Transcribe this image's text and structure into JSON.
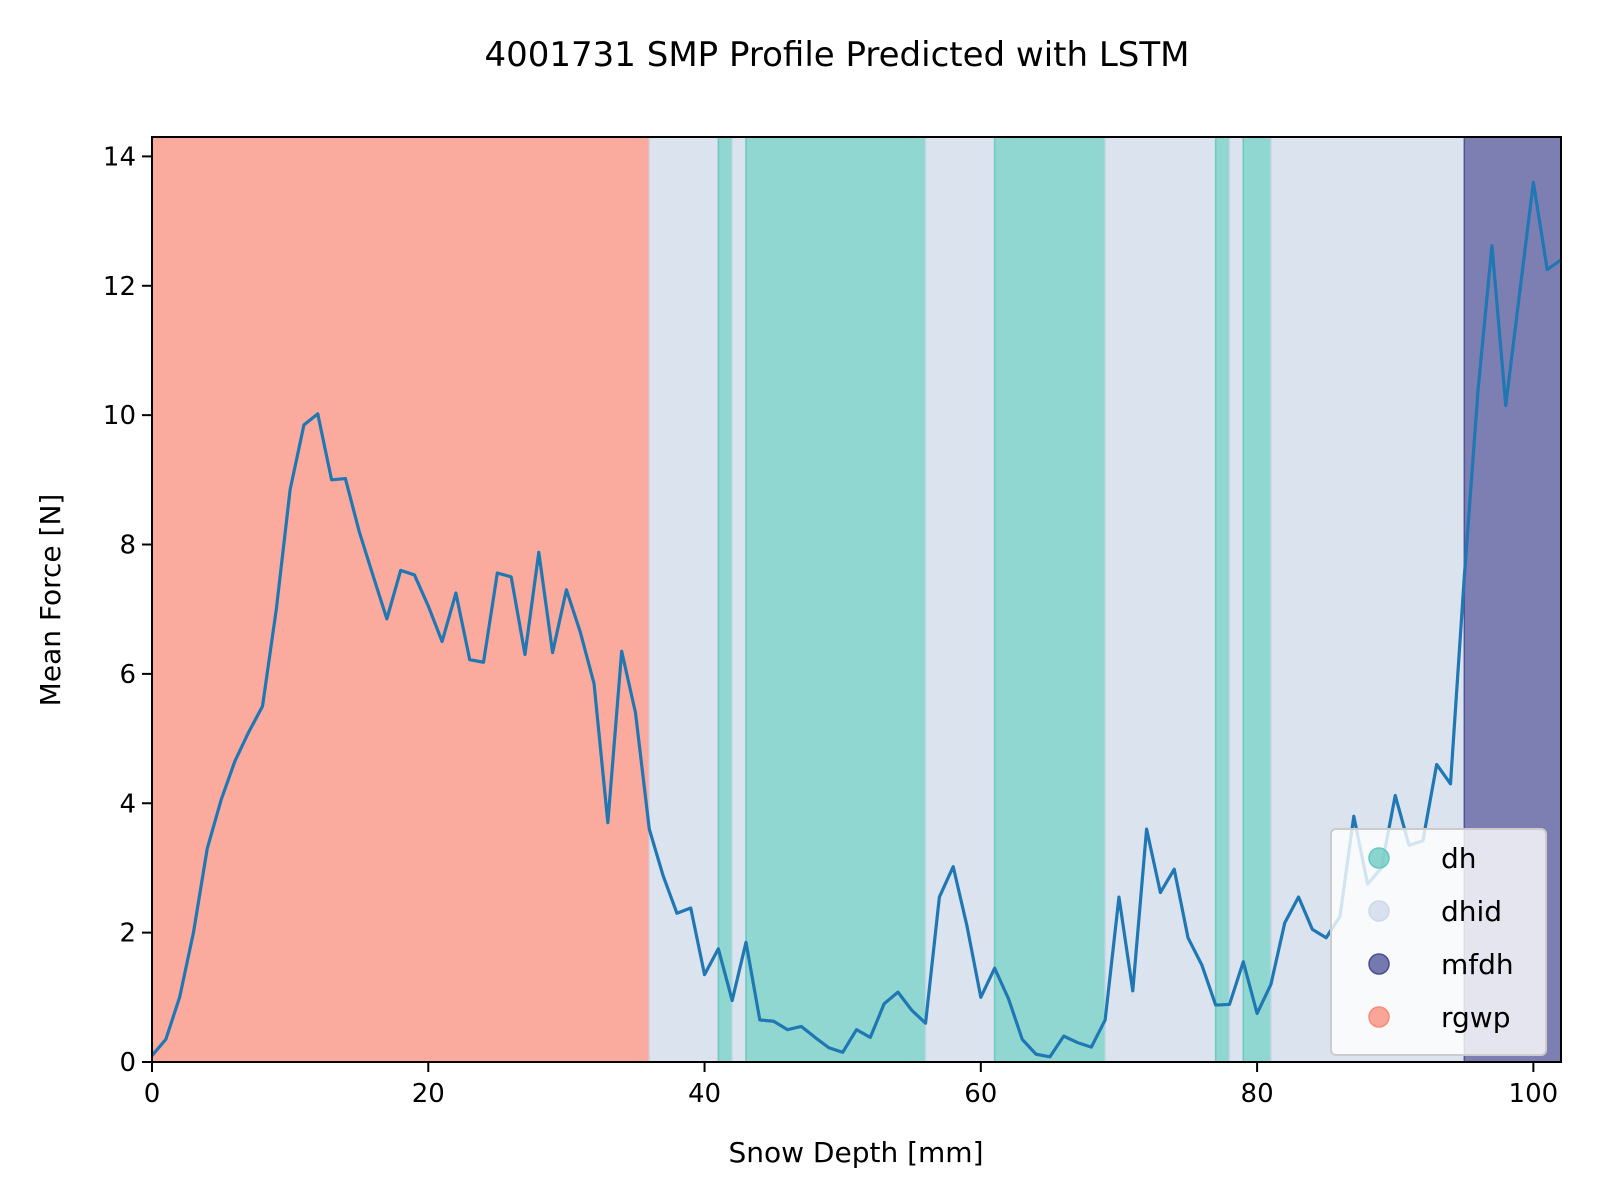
{
  "chart_data": {
    "type": "line",
    "title": "4001731 SMP Profile Predicted with LSTM",
    "xlabel": "Snow Depth [mm]",
    "ylabel": "Mean Force [N]",
    "xlim": [
      0,
      102
    ],
    "ylim": [
      0,
      14.3
    ],
    "xticks": [
      0,
      20,
      40,
      60,
      80,
      100
    ],
    "yticks": [
      0,
      2,
      4,
      6,
      8,
      10,
      12,
      14
    ],
    "grid": false,
    "legend_position": "bottom-right",
    "line_color": "#1f77b4",
    "classes": [
      {
        "name": "dh",
        "color": "#66c8bf"
      },
      {
        "name": "dhid",
        "color": "#cdd8e8"
      },
      {
        "name": "mfdh",
        "color": "#4b4e94"
      },
      {
        "name": "rgwp",
        "color": "#fa8a78"
      }
    ],
    "bands": [
      {
        "class": "rgwp",
        "start": 0,
        "end": 36
      },
      {
        "class": "dhid",
        "start": 36,
        "end": 41
      },
      {
        "class": "dh",
        "start": 41,
        "end": 42
      },
      {
        "class": "dhid",
        "start": 42,
        "end": 43
      },
      {
        "class": "dh",
        "start": 43,
        "end": 56
      },
      {
        "class": "dhid",
        "start": 56,
        "end": 61
      },
      {
        "class": "dh",
        "start": 61,
        "end": 69
      },
      {
        "class": "dhid",
        "start": 69,
        "end": 77
      },
      {
        "class": "dh",
        "start": 77,
        "end": 78
      },
      {
        "class": "dhid",
        "start": 78,
        "end": 79
      },
      {
        "class": "dh",
        "start": 79,
        "end": 81
      },
      {
        "class": "dhid",
        "start": 81,
        "end": 95
      },
      {
        "class": "mfdh",
        "start": 95,
        "end": 102
      }
    ],
    "series": [
      {
        "x": [
          0,
          1,
          2,
          3,
          4,
          5,
          6,
          7,
          8,
          9,
          10,
          11,
          12,
          13,
          14,
          15,
          16,
          17,
          18,
          19,
          20,
          21,
          22,
          23,
          24,
          25,
          26,
          27,
          28,
          29,
          30,
          31,
          32,
          33,
          34,
          35,
          36,
          37,
          38,
          39,
          40,
          41,
          42,
          43,
          44,
          45,
          46,
          47,
          48,
          49,
          50,
          51,
          52,
          53,
          54,
          55,
          56,
          57,
          58,
          59,
          60,
          61,
          62,
          63,
          64,
          65,
          66,
          67,
          68,
          69,
          70,
          71,
          72,
          73,
          74,
          75,
          76,
          77,
          78,
          79,
          80,
          81,
          82,
          83,
          84,
          85,
          86,
          87,
          88,
          89,
          90,
          91,
          92,
          93,
          94,
          95,
          96,
          97,
          98,
          99,
          100,
          101,
          102
        ],
        "y": [
          0.1,
          0.35,
          1.0,
          2.0,
          3.3,
          4.05,
          4.65,
          5.1,
          5.5,
          7.0,
          8.85,
          9.85,
          10.02,
          9.0,
          9.02,
          8.2,
          7.52,
          6.85,
          7.6,
          7.53,
          7.05,
          6.5,
          7.25,
          6.22,
          6.18,
          7.56,
          7.5,
          6.3,
          7.88,
          6.33,
          7.3,
          6.65,
          5.85,
          3.7,
          6.35,
          5.4,
          3.6,
          2.88,
          2.3,
          2.38,
          1.35,
          1.75,
          0.95,
          1.85,
          0.65,
          0.63,
          0.5,
          0.55,
          0.38,
          0.22,
          0.15,
          0.5,
          0.38,
          0.9,
          1.08,
          0.8,
          0.6,
          2.55,
          3.02,
          2.1,
          1.0,
          1.45,
          0.98,
          0.35,
          0.12,
          0.08,
          0.4,
          0.3,
          0.23,
          0.65,
          2.55,
          1.1,
          3.6,
          2.62,
          2.98,
          1.92,
          1.5,
          0.88,
          0.89,
          1.55,
          0.75,
          1.2,
          2.15,
          2.55,
          2.05,
          1.92,
          2.25,
          3.8,
          2.75,
          3.0,
          4.12,
          3.35,
          3.42,
          4.6,
          4.3,
          7.5,
          10.4,
          12.62,
          10.15,
          11.88,
          13.6,
          12.25,
          12.4
        ]
      }
    ]
  }
}
